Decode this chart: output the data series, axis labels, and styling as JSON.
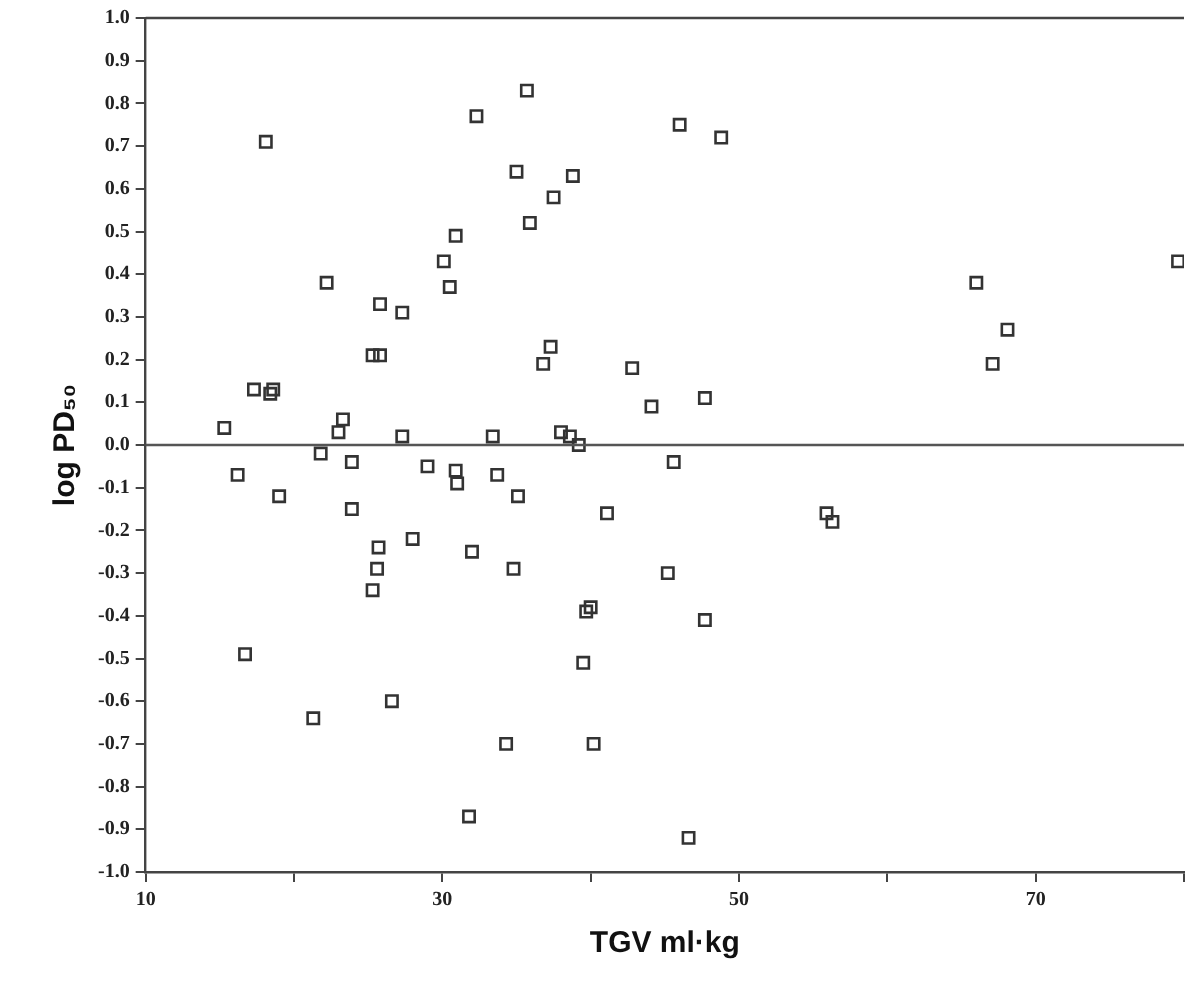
{
  "chart_data": {
    "type": "scatter",
    "xlabel": "TGV ml·kg",
    "ylabel": "log PD₅₀",
    "series": [
      {
        "color": "#333333",
        "marker": "square",
        "x": [
          15.3,
          18.1,
          17.3,
          18.6,
          18.4,
          16.2,
          19.0,
          22.2,
          21.8,
          23.0,
          23.3,
          23.9,
          25.3,
          25.8,
          25.8,
          27.3,
          27.3,
          29.0,
          30.1,
          30.5,
          30.9,
          30.9,
          31.0,
          32.3,
          33.4,
          33.7,
          35.0,
          35.7,
          35.9,
          35.1,
          36.8,
          37.3,
          37.5,
          38.8,
          38.0,
          38.6,
          39.2,
          46.0,
          48.8,
          42.8,
          44.1,
          47.7,
          45.6,
          66.0,
          68.1,
          67.1,
          79.6,
          23.9,
          25.7,
          25.6,
          25.3,
          28.0,
          32.0,
          34.8,
          39.7,
          40.0,
          39.5,
          16.7,
          21.3,
          26.6,
          34.3,
          40.2,
          31.8,
          41.1,
          55.9,
          56.3,
          45.2,
          47.7,
          46.6
        ],
        "values": [
          0.04,
          0.71,
          0.13,
          0.13,
          0.12,
          -0.07,
          -0.12,
          0.38,
          -0.02,
          0.03,
          0.06,
          -0.04,
          0.21,
          0.21,
          0.33,
          0.31,
          0.02,
          -0.05,
          0.43,
          0.37,
          0.49,
          -0.06,
          -0.09,
          0.77,
          0.02,
          -0.07,
          0.64,
          0.83,
          0.52,
          -0.12,
          0.19,
          0.23,
          0.58,
          0.63,
          0.03,
          0.02,
          0.0,
          0.75,
          0.72,
          0.18,
          0.09,
          0.11,
          -0.04,
          0.38,
          0.27,
          0.19,
          0.43,
          -0.15,
          -0.24,
          -0.29,
          -0.34,
          -0.22,
          -0.25,
          -0.29,
          -0.39,
          -0.38,
          -0.51,
          -0.49,
          -0.64,
          -0.6,
          -0.7,
          -0.7,
          -0.87,
          -0.16,
          -0.16,
          -0.18,
          -0.3,
          -0.41,
          -0.92
        ]
      }
    ],
    "xlim": [
      10,
      80
    ],
    "xticks": [
      10,
      {
        "value": 20,
        "label": null
      },
      30,
      {
        "value": 40,
        "label": null
      },
      50,
      {
        "value": 60,
        "label": null
      },
      70,
      {
        "value": 80,
        "label": null
      }
    ],
    "ylim": [
      -1,
      1
    ],
    "yticks": [
      {
        "value": -1,
        "label": "-1.0"
      },
      {
        "value": -0.9,
        "label": "-0.9"
      },
      {
        "value": -0.8,
        "label": "-0.8"
      },
      {
        "value": -0.7,
        "label": "-0.7"
      },
      {
        "value": -0.6,
        "label": "-0.6"
      },
      {
        "value": -0.5,
        "label": "-0.5"
      },
      {
        "value": -0.4,
        "label": "-0.4"
      },
      {
        "value": -0.3,
        "label": "-0.3"
      },
      {
        "value": -0.2,
        "label": "-0.2"
      },
      {
        "value": -0.1,
        "label": "-0.1"
      },
      {
        "value": 0,
        "label": "0.0"
      },
      {
        "value": 0.1,
        "label": "0.1"
      },
      {
        "value": 0.2,
        "label": "0.2"
      },
      {
        "value": 0.3,
        "label": "0.3"
      },
      {
        "value": 0.4,
        "label": "0.4"
      },
      {
        "value": 0.5,
        "label": "0.5"
      },
      {
        "value": 0.6,
        "label": "0.6"
      },
      {
        "value": 0.7,
        "label": "0.7"
      },
      {
        "value": 0.8,
        "label": "0.8"
      },
      {
        "value": 0.9,
        "label": "0.9"
      },
      {
        "value": 1,
        "label": "1.0"
      }
    ],
    "ref_lines": [
      {
        "axis": "y",
        "value": 0,
        "color": "#555555"
      }
    ],
    "grid": false,
    "legend": false
  }
}
